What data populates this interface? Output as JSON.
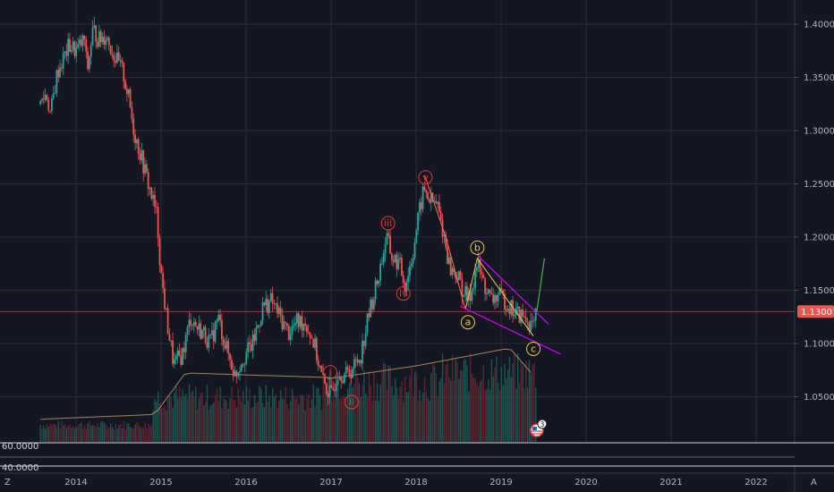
{
  "theme": {
    "background": "#131722",
    "grid": "#2a2e39",
    "axis_text": "#b2b5be",
    "up": "#26a69a",
    "down": "#ef5350",
    "ma_line": "#c8a060",
    "wave_red": "#e53935",
    "wave_gold": "#f5c542",
    "channel": "#d500f9",
    "projection": "#4caf50",
    "price_line": "#ef5350"
  },
  "chart_data": {
    "type": "candlestick",
    "x_ticks": [
      "2014",
      "2015",
      "2016",
      "2017",
      "2018",
      "2019",
      "2020",
      "2021",
      "2022"
    ],
    "y_ticks": [
      "1.40000",
      "1.35000",
      "1.30000",
      "1.25000",
      "1.20000",
      "1.15000",
      "1.10000",
      "1.05000"
    ],
    "ylim": [
      1.02,
      1.41
    ],
    "grid": true,
    "current_price": "1.13001",
    "sub_pane_ticks": [
      "60.0000",
      "40.0000"
    ],
    "corner_labels": {
      "left": "Z",
      "right": "A"
    },
    "wave_labels_red": [
      {
        "label": "i",
        "date": 2016.99,
        "price": 1.073
      },
      {
        "label": "ii",
        "date": 2017.24,
        "price": 1.045
      },
      {
        "label": "iii",
        "date": 2017.67,
        "price": 1.213
      },
      {
        "label": "iv",
        "date": 2017.85,
        "price": 1.147
      },
      {
        "label": "v",
        "date": 2018.11,
        "price": 1.256
      }
    ],
    "wave_labels_gold": [
      {
        "label": "a",
        "date": 2018.61,
        "price": 1.12
      },
      {
        "label": "b",
        "date": 2018.72,
        "price": 1.19
      },
      {
        "label": "c",
        "date": 2019.38,
        "price": 1.095
      }
    ],
    "news_badge_count": "3"
  }
}
